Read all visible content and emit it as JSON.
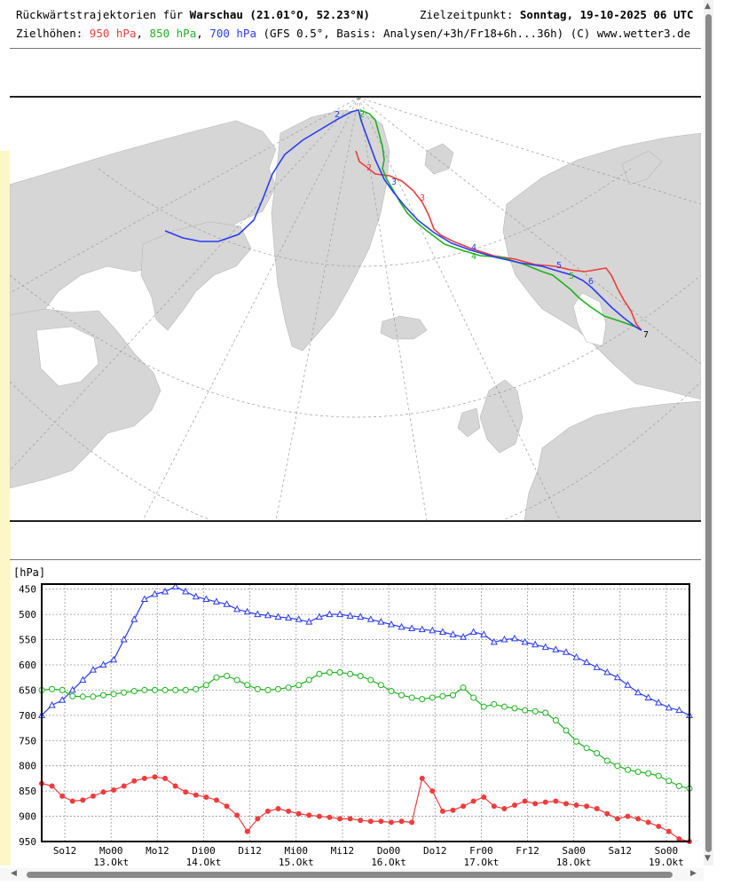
{
  "header": {
    "title_prefix": "Rückwärtstrajektorien für ",
    "city": "Warschau",
    "coords": "(21.01°O, 52.23°N)",
    "target_label": "Zielzeitpunkt: ",
    "target_value": "Sonntag, 19-10-2025  06 UTC",
    "heights_label": "Zielhöhen: ",
    "level_950": "950 hPa",
    "level_850": "850 hPa",
    "level_700": "700 hPa",
    "source": "(GFS 0.5°, Basis: Analysen/+3h/Fr18+6h...36h)",
    "credit": "(C) www.wetter3.de"
  },
  "colors": {
    "red": "#f03c3c",
    "green": "#1db21d",
    "blue": "#2a3cf0"
  },
  "map": {
    "land_color": "#d6d6d6",
    "graticule": "dashed"
  },
  "chart_data": {
    "type": "line",
    "ylabel": "[hPa]",
    "ylim": [
      950,
      440
    ],
    "yticks": [
      450,
      500,
      550,
      600,
      650,
      700,
      750,
      800,
      850,
      900,
      950
    ],
    "xrange": [
      0,
      5.5
    ],
    "xticks": [
      {
        "t": 0.25,
        "top": "So12",
        "bottom": ""
      },
      {
        "t": 0.75,
        "top": "Mo00",
        "bottom": "13.Okt"
      },
      {
        "t": 1.25,
        "top": "Mo12",
        "bottom": ""
      },
      {
        "t": 1.75,
        "top": "Di00",
        "bottom": "14.Okt"
      },
      {
        "t": 2.25,
        "top": "Di12",
        "bottom": ""
      },
      {
        "t": 2.75,
        "top": "Mi00",
        "bottom": "15.Okt"
      },
      {
        "t": 3.25,
        "top": "Mi12",
        "bottom": ""
      },
      {
        "t": 3.75,
        "top": "Do00",
        "bottom": "16.Okt"
      },
      {
        "t": 4.25,
        "top": "Do12",
        "bottom": ""
      },
      {
        "t": 4.75,
        "top": "Fr00",
        "bottom": "17.Okt"
      },
      {
        "t": 5.25,
        "top": "Fr12",
        "bottom": ""
      },
      {
        "t": 5.75,
        "top": "Sa00",
        "bottom": "18.Okt"
      },
      {
        "t": 6.25,
        "top": "Sa12",
        "bottom": ""
      },
      {
        "t": 6.75,
        "top": "So00",
        "bottom": "19.Okt"
      }
    ],
    "series": [
      {
        "name": "700 hPa",
        "color": "#2a3cf0",
        "marker": "triangle",
        "values": [
          700,
          680,
          670,
          650,
          630,
          610,
          600,
          590,
          550,
          510,
          470,
          460,
          455,
          445,
          455,
          465,
          470,
          475,
          480,
          490,
          495,
          500,
          502,
          505,
          507,
          510,
          515,
          505,
          500,
          500,
          503,
          505,
          510,
          515,
          520,
          525,
          528,
          530,
          532,
          535,
          540,
          545,
          535,
          540,
          555,
          550,
          548,
          555,
          560,
          565,
          570,
          575,
          585,
          595,
          605,
          615,
          625,
          640,
          655,
          665,
          675,
          685,
          690,
          700
        ]
      },
      {
        "name": "850 hPa",
        "color": "#1db21d",
        "marker": "circle",
        "values": [
          650,
          648,
          650,
          662,
          663,
          663,
          660,
          658,
          655,
          652,
          650,
          650,
          650,
          650,
          650,
          648,
          640,
          625,
          622,
          630,
          640,
          648,
          650,
          648,
          645,
          640,
          630,
          618,
          615,
          615,
          618,
          622,
          630,
          640,
          652,
          660,
          665,
          668,
          665,
          662,
          660,
          645,
          665,
          683,
          678,
          683,
          686,
          690,
          692,
          695,
          710,
          730,
          752,
          765,
          775,
          790,
          800,
          808,
          812,
          815,
          820,
          830,
          840,
          845
        ]
      },
      {
        "name": "950 hPa",
        "color": "#f03c3c",
        "marker": "dot",
        "values": [
          835,
          840,
          860,
          870,
          868,
          860,
          852,
          848,
          840,
          830,
          825,
          822,
          825,
          840,
          852,
          858,
          862,
          868,
          880,
          898,
          930,
          905,
          890,
          885,
          890,
          895,
          898,
          900,
          902,
          905,
          905,
          908,
          910,
          910,
          912,
          910,
          912,
          825,
          850,
          890,
          888,
          880,
          870,
          862,
          880,
          885,
          878,
          870,
          875,
          872,
          870,
          875,
          878,
          880,
          885,
          895,
          905,
          900,
          905,
          912,
          920,
          930,
          945,
          950
        ]
      }
    ]
  }
}
